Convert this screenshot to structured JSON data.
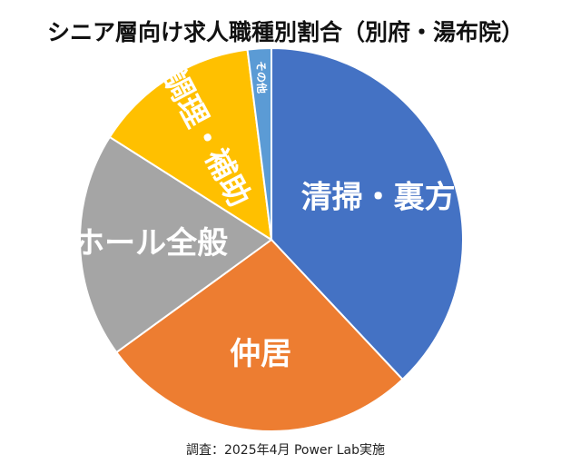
{
  "chart_data": {
    "type": "pie",
    "title": "シニア層向け求人職種別割合（別府・湯布院）",
    "categories": [
      "清掃・裏方",
      "仲居",
      "ホール全般",
      "調理・補助",
      "その他"
    ],
    "values": [
      38,
      27,
      19,
      14,
      2
    ],
    "colors": [
      "#4472C4",
      "#ED7D31",
      "#A5A5A5",
      "#FFC000",
      "#5B9BD5"
    ],
    "label_color": "#FFFFFF",
    "source": "調査：2025年4月 Power Lab実施"
  }
}
